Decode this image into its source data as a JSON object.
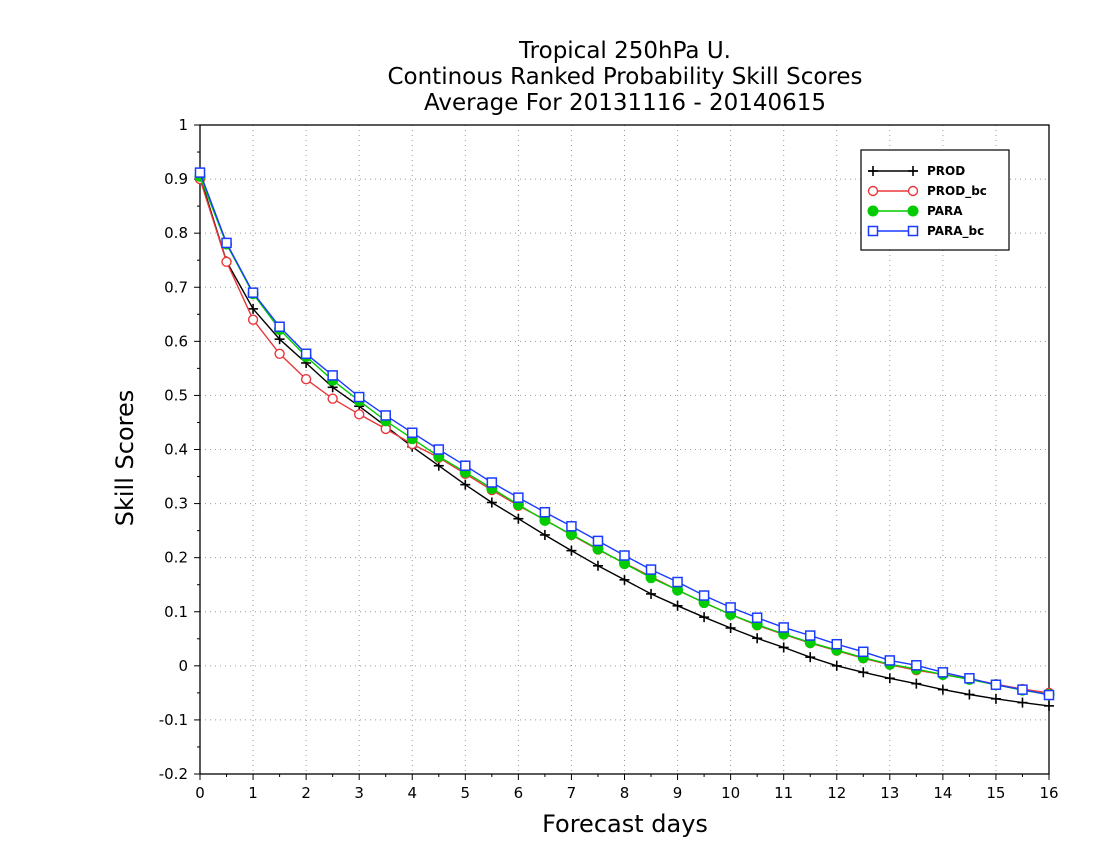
{
  "chart_data": {
    "type": "line",
    "title": "Tropical 250hPa U.",
    "subtitle": "Continous Ranked Probability Skill Scores",
    "subtitle2": "Average For 20131116 - 20140615",
    "xlabel": "Forecast days",
    "ylabel": "Skill Scores",
    "xlim": [
      0,
      16
    ],
    "ylim": [
      -0.2,
      1
    ],
    "xticks": [
      "0",
      "1",
      "2",
      "3",
      "4",
      "5",
      "6",
      "7",
      "8",
      "9",
      "10",
      "11",
      "12",
      "13",
      "14",
      "15",
      "16"
    ],
    "yticks": [
      "1",
      "0.9",
      "0.8",
      "0.7",
      "0.6",
      "0.5",
      "0.4",
      "0.3",
      "0.2",
      "0.1",
      "0",
      "-0.1",
      "-0.2"
    ],
    "grid": true,
    "legend_position": "top-right",
    "x": [
      0,
      0.5,
      1,
      1.5,
      2,
      2.5,
      3,
      3.5,
      4,
      4.5,
      5,
      5.5,
      6,
      6.5,
      7,
      7.5,
      8,
      8.5,
      9,
      9.5,
      10,
      10.5,
      11,
      11.5,
      12,
      12.5,
      13,
      13.5,
      14,
      14.5,
      15,
      15.5,
      16
    ],
    "series": [
      {
        "name": "PROD",
        "color": "#000000",
        "marker": "plus",
        "values": [
          0.905,
          0.748,
          0.66,
          0.604,
          0.56,
          0.515,
          0.48,
          0.443,
          0.405,
          0.37,
          0.335,
          0.302,
          0.272,
          0.242,
          0.213,
          0.185,
          0.159,
          0.133,
          0.111,
          0.09,
          0.07,
          0.051,
          0.034,
          0.016,
          0.0,
          -0.012,
          -0.023,
          -0.033,
          -0.044,
          -0.053,
          -0.061,
          -0.068,
          -0.074
        ]
      },
      {
        "name": "PROD_bc",
        "color": "#e8383c",
        "marker": "open-circle",
        "values": [
          0.9,
          0.747,
          0.64,
          0.577,
          0.53,
          0.494,
          0.465,
          0.438,
          0.41,
          0.385,
          0.355,
          0.325,
          0.296,
          0.27,
          0.242,
          0.215,
          0.19,
          0.165,
          0.14,
          0.117,
          0.095,
          0.075,
          0.058,
          0.042,
          0.028,
          0.014,
          0.002,
          -0.008,
          -0.016,
          -0.024,
          -0.034,
          -0.043,
          -0.05
        ]
      },
      {
        "name": "PARA",
        "color": "#00cc00",
        "marker": "filled-circle",
        "values": [
          0.905,
          0.78,
          0.688,
          0.622,
          0.572,
          0.528,
          0.49,
          0.453,
          0.42,
          0.387,
          0.358,
          0.328,
          0.298,
          0.269,
          0.243,
          0.216,
          0.189,
          0.163,
          0.14,
          0.117,
          0.095,
          0.076,
          0.059,
          0.043,
          0.029,
          0.015,
          0.003,
          -0.006,
          -0.016,
          -0.025,
          -0.035,
          -0.045,
          -0.053
        ]
      },
      {
        "name": "PARA_bc",
        "color": "#1a3cff",
        "marker": "open-square",
        "values": [
          0.912,
          0.782,
          0.69,
          0.627,
          0.577,
          0.537,
          0.497,
          0.463,
          0.431,
          0.4,
          0.37,
          0.339,
          0.311,
          0.284,
          0.258,
          0.231,
          0.204,
          0.178,
          0.155,
          0.13,
          0.108,
          0.089,
          0.071,
          0.056,
          0.04,
          0.026,
          0.01,
          0.001,
          -0.012,
          -0.023,
          -0.035,
          -0.044,
          -0.054
        ]
      }
    ]
  }
}
